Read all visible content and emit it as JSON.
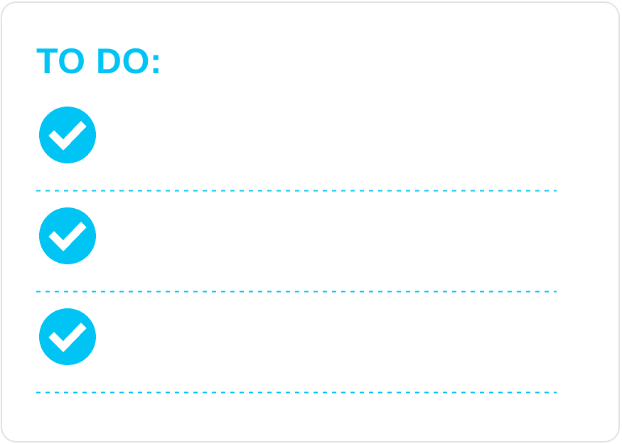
{
  "title": "TO DO:",
  "colors": {
    "accent": "#00c4f4",
    "border": "#e2e2e2",
    "background": "#ffffff"
  },
  "tasks": [
    {
      "icon": "check-circle-icon",
      "text": ""
    },
    {
      "icon": "check-circle-icon",
      "text": ""
    },
    {
      "icon": "check-circle-icon",
      "text": ""
    }
  ]
}
